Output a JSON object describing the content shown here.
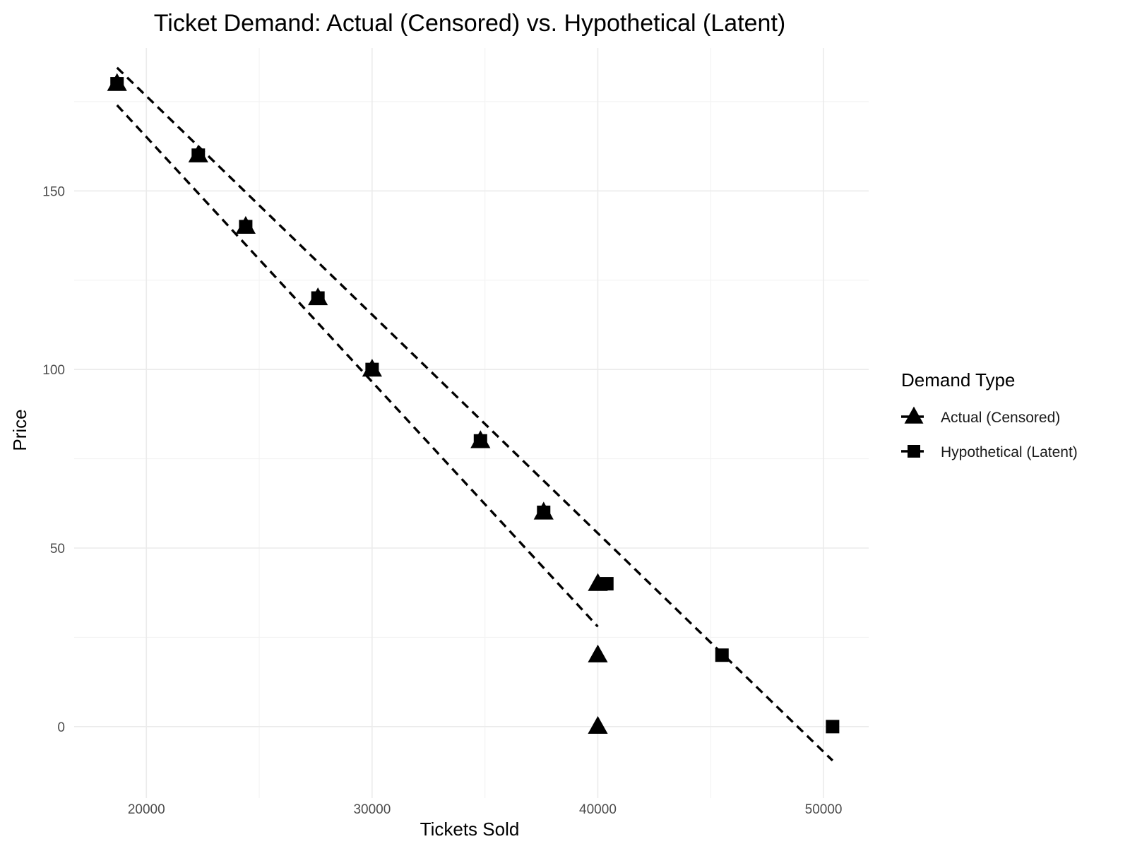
{
  "chart_data": {
    "type": "scatter",
    "title": "Ticket Demand: Actual (Censored) vs. Hypothetical (Latent)",
    "xlabel": "Tickets Sold",
    "ylabel": "Price",
    "xlim": [
      16800,
      52000
    ],
    "ylim": [
      -20,
      190
    ],
    "x_ticks": [
      20000,
      30000,
      40000,
      50000
    ],
    "x_tick_labels": [
      "20000",
      "30000",
      "40000",
      "50000"
    ],
    "y_ticks": [
      0,
      50,
      100,
      150
    ],
    "y_tick_labels": [
      "0",
      "50",
      "100",
      "150"
    ],
    "grid": true,
    "legend": {
      "title": "Demand Type",
      "position": "right"
    },
    "series": [
      {
        "name": "Actual (Censored)",
        "marker": "triangle",
        "color": "#000000",
        "points": [
          {
            "x": 18700,
            "y": 180
          },
          {
            "x": 22300,
            "y": 160
          },
          {
            "x": 24400,
            "y": 140
          },
          {
            "x": 27600,
            "y": 120
          },
          {
            "x": 30000,
            "y": 100
          },
          {
            "x": 34800,
            "y": 80
          },
          {
            "x": 37600,
            "y": 60
          },
          {
            "x": 40000,
            "y": 40
          },
          {
            "x": 40000,
            "y": 20
          },
          {
            "x": 40000,
            "y": 0
          }
        ],
        "fit_line": {
          "x": [
            18700,
            40000
          ],
          "y": [
            174,
            28
          ]
        }
      },
      {
        "name": "Hypothetical (Latent)",
        "marker": "square",
        "color": "#000000",
        "points": [
          {
            "x": 18700,
            "y": 180
          },
          {
            "x": 22300,
            "y": 160
          },
          {
            "x": 24400,
            "y": 140
          },
          {
            "x": 27600,
            "y": 120
          },
          {
            "x": 30000,
            "y": 100
          },
          {
            "x": 34800,
            "y": 80
          },
          {
            "x": 37600,
            "y": 60
          },
          {
            "x": 40400,
            "y": 40
          },
          {
            "x": 45500,
            "y": 20
          },
          {
            "x": 50400,
            "y": 0
          }
        ],
        "fit_line": {
          "x": [
            18700,
            50400
          ],
          "y": [
            184.5,
            -9.5
          ]
        }
      }
    ]
  }
}
